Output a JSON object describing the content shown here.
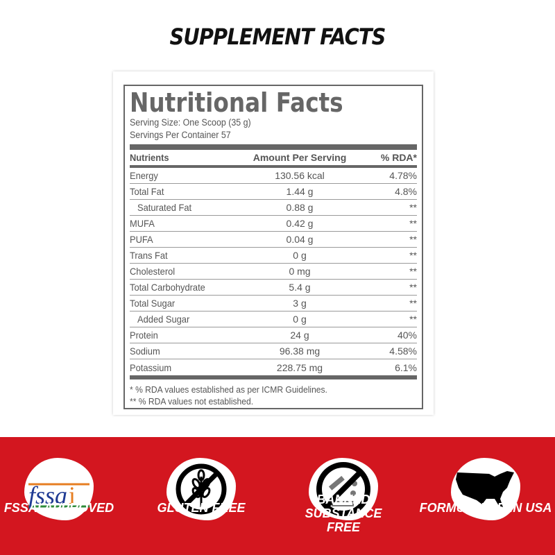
{
  "heading": "SUPPLEMENT FACTS",
  "panel": {
    "title": "Nutritional Facts",
    "serving_size": "Serving Size: One Scoop (35 g)",
    "servings": "Servings Per Container 57",
    "columns": [
      "Nutrients",
      "Amount Per Serving",
      "% RDA*"
    ],
    "rows": [
      [
        "Energy",
        "130.56 kcal",
        "4.78%"
      ],
      [
        "Total Fat",
        "1.44 g",
        "4.8%"
      ],
      [
        "Saturated Fat",
        "0.88 g",
        "**"
      ],
      [
        "MUFA",
        "0.42 g",
        "**"
      ],
      [
        "PUFA",
        "0.04 g",
        "**"
      ],
      [
        "Trans Fat",
        "0 g",
        "**"
      ],
      [
        "Cholesterol",
        "0 mg",
        "**"
      ],
      [
        "Total Carbohydrate",
        "5.4 g",
        "**"
      ],
      [
        "Total Sugar",
        "3 g",
        "**"
      ],
      [
        "Added Sugar",
        "0 g",
        "**"
      ],
      [
        "Protein",
        "24 g",
        "40%"
      ],
      [
        "Sodium",
        "96.38 mg",
        "4.58%"
      ],
      [
        "Potassium",
        "228.75 mg",
        "6.1%"
      ]
    ],
    "footnotes": [
      "* % RDA values established as per ICMR Guidelines.",
      "** % RDA values not established."
    ]
  },
  "badges": [
    {
      "label": "FSSAI APPROVED",
      "icon": "fssai-logo",
      "logo_text": "fssai"
    },
    {
      "label": "GLUTEN FREE",
      "icon": "no-wheat-icon"
    },
    {
      "label": "BANNED SUBSTANCE FREE",
      "icon": "no-drugs-icon"
    },
    {
      "label": "FORMULATED IN USA",
      "icon": "usa-map-icon"
    }
  ],
  "colors": {
    "band": "#d3161f",
    "panel_gray": "#666666"
  }
}
